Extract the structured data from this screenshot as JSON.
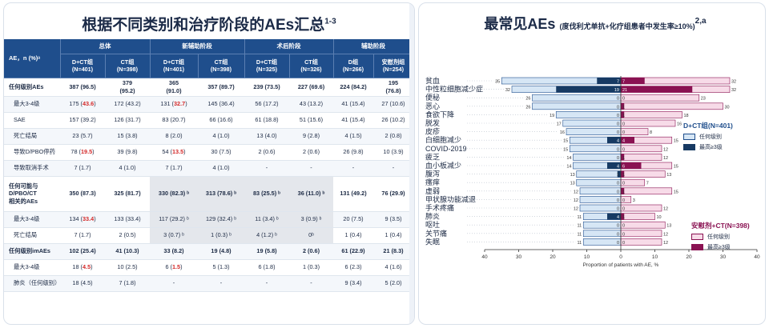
{
  "left": {
    "title": "根据不同类别和治疗阶段的AEs汇总",
    "title_sup": "1-3",
    "header_row_label": "AE，n (%)ᵃ",
    "groups": [
      "总体",
      "新辅助阶段",
      "术后阶段",
      "辅助阶段"
    ],
    "columns": [
      "D+CT组\n(N=401)",
      "CT组\n(N=398)",
      "D+CT组\n(N=401)",
      "CT组\n(N=398)",
      "D+CT组\n(N=325)",
      "CT组\n(N=326)",
      "D组\n(N=266)",
      "安慰剂组\n(N=254)"
    ],
    "rows": [
      {
        "label": "任何级别AEs",
        "bold": true,
        "cells": [
          "387 (96.5)",
          "379\n(95.2)",
          "365\n(91.0)",
          "357 (89.7)",
          "239 (73.5)",
          "227 (69.6)",
          "224 (84.2)",
          "195\n(76.8)"
        ]
      },
      {
        "label": "最大3-4级",
        "indent": true,
        "cells": [
          "175 (|43.6|)",
          "172 (43.2)",
          "131 (|32.7|)",
          "145 (36.4)",
          "56 (17.2)",
          "43 (13.2)",
          "41 (15.4)",
          "27 (10.6)"
        ]
      },
      {
        "label": "SAE",
        "indent": true,
        "cells": [
          "157 (39.2)",
          "126 (31.7)",
          "83 (20.7)",
          "66 (16.6)",
          "61 (18.8)",
          "51 (15.6)",
          "41 (15.4)",
          "26 (10.2)"
        ]
      },
      {
        "label": "死亡结局",
        "indent": true,
        "cells": [
          "23 (5.7)",
          "15 (3.8)",
          "8 (2.0)",
          "4 (1.0)",
          "13 (4.0)",
          "9 (2.8)",
          "4 (1.5)",
          "2 (0.8)"
        ]
      },
      {
        "label": "导致D/PBO停药",
        "indent": true,
        "cells": [
          "78 (|19.5|)",
          "39 (9.8)",
          "54 (|13.5|)",
          "30 (7.5)",
          "2 (0.6)",
          "2 (0.6)",
          "26 (9.8)",
          "10 (3.9)"
        ]
      },
      {
        "label": "导致取消手术",
        "indent": true,
        "cells": [
          "7 (1.7)",
          "4 (1.0)",
          "7 (1.7)",
          "4 (1.0)",
          "-",
          "-",
          "-",
          "-"
        ]
      },
      {
        "label": "任何可能与\nD/PBO/CT\n相关的AEs",
        "bold": true,
        "tall": true,
        "shadeCols": [
          2,
          3,
          4,
          5
        ],
        "cells": [
          "350 (87.3)",
          "325 (81.7)",
          "330 (82.3) ᵇ",
          "313 (78.6) ᵇ",
          "83 (25.5) ᵇ",
          "36 (11.0) ᵇ",
          "131 (49.2)",
          "76 (29.9)"
        ]
      },
      {
        "label": "最大3-4级",
        "indent": true,
        "shadeCols": [
          2,
          3,
          4,
          5
        ],
        "cells": [
          "134 (|33.4|)",
          "133 (33.4)",
          "117 (29.2) ᵇ",
          "129 (32.4) ᵇ",
          "11 (3.4) ᵇ",
          "3 (0.9) ᵇ",
          "20 (7.5)",
          "9 (3.5)"
        ]
      },
      {
        "label": "死亡结局",
        "indent": true,
        "shadeCols": [
          2,
          3,
          4,
          5
        ],
        "cells": [
          "7 (1.7)",
          "2 (0.5)",
          "3 (0.7) ᵇ",
          "1 (0.3) ᵇ",
          "4 (1.2) ᵇ",
          "0ᵇ",
          "1 (0.4)",
          "1 (0.4)"
        ]
      },
      {
        "label": "任何级别imAEs",
        "bold": true,
        "cells": [
          "102 (25.4)",
          "41 (10.3)",
          "33 (8.2)",
          "19 (4.8)",
          "19 (5.8)",
          "2 (0.6)",
          "61 (22.9)",
          "21 (8.3)"
        ]
      },
      {
        "label": "最大3-4级",
        "indent": true,
        "cells": [
          "18 (|4.5|)",
          "10 (2.5)",
          "6 (|1.5|)",
          "5 (1.3)",
          "6 (1.8)",
          "1 (0.3)",
          "6 (2.3)",
          "4 (1.6)"
        ]
      },
      {
        "label": "肺炎（任何级别）",
        "indent": true,
        "cells": [
          "18 (4.5)",
          "7 (1.8)",
          "-",
          "-",
          "-",
          "-",
          "9 (3.4)",
          "5 (2.0)"
        ]
      }
    ]
  },
  "right": {
    "title": "最常见AEs",
    "subtitle": "(度伐利尤单抗+化疗组患者中发生率≥10%)",
    "title_sup": "2,a",
    "legend": {
      "dct_title": "D+CT组(N=401)",
      "ct_title": "安慰剂+CT(N=398)",
      "any_grade": "任何级别",
      "grade34": "最高≥3级"
    }
  },
  "colors": {
    "header_blue": "#1f4e8c",
    "dct_any": "#d6e6f5",
    "dct_grade3": "#173a63",
    "ct_any": "#f7dbe8",
    "ct_grade3": "#8a1252",
    "red_highlight": "#d42b2b"
  },
  "chart_data": {
    "type": "bar",
    "orientation": "horizontal-butterfly",
    "xlabel": "Proportion of patients with AE, %",
    "xlim": [
      -40,
      40
    ],
    "xticks": [
      "40",
      "30",
      "20",
      "10",
      "0",
      "10",
      "20",
      "30",
      "40"
    ],
    "categories": [
      "贫血",
      "中性粒细胞减少症",
      "便秘",
      "恶心",
      "食欲下降",
      "脱发",
      "皮疹",
      "白细胞减少",
      "COVID-2019",
      "疲乏",
      "血小板减少",
      "腹泻",
      "瘙痒",
      "虚弱",
      "甲状腺功能减退",
      "手术疼痛",
      "肺炎",
      "呕吐",
      "关节痛",
      "失眠"
    ],
    "series": [
      {
        "name": "D+CT组(N=401) 任何级别",
        "values": [
          35,
          32,
          26,
          26,
          19,
          17,
          16,
          15,
          15,
          14,
          14,
          13,
          13,
          12,
          12,
          12,
          11,
          11,
          11,
          11
        ]
      },
      {
        "name": "D+CT组(N=401) 最高≥3级",
        "values": [
          7,
          19,
          0,
          0,
          0,
          0,
          0,
          4,
          0,
          0,
          4,
          1,
          0,
          0,
          0,
          0,
          4,
          0,
          0,
          0
        ]
      },
      {
        "name": "安慰剂+CT(N=398) 任何级别",
        "values": [
          32,
          32,
          23,
          30,
          18,
          16,
          8,
          15,
          12,
          12,
          15,
          13,
          7,
          15,
          3,
          12,
          10,
          13,
          12,
          12
        ]
      },
      {
        "name": "安慰剂+CT(N=398) 最高≥3级",
        "values": [
          7,
          21,
          0,
          1,
          1,
          0,
          0,
          4,
          0,
          1,
          6,
          1,
          0,
          1,
          0,
          0,
          1,
          0,
          0,
          0
        ]
      }
    ]
  }
}
